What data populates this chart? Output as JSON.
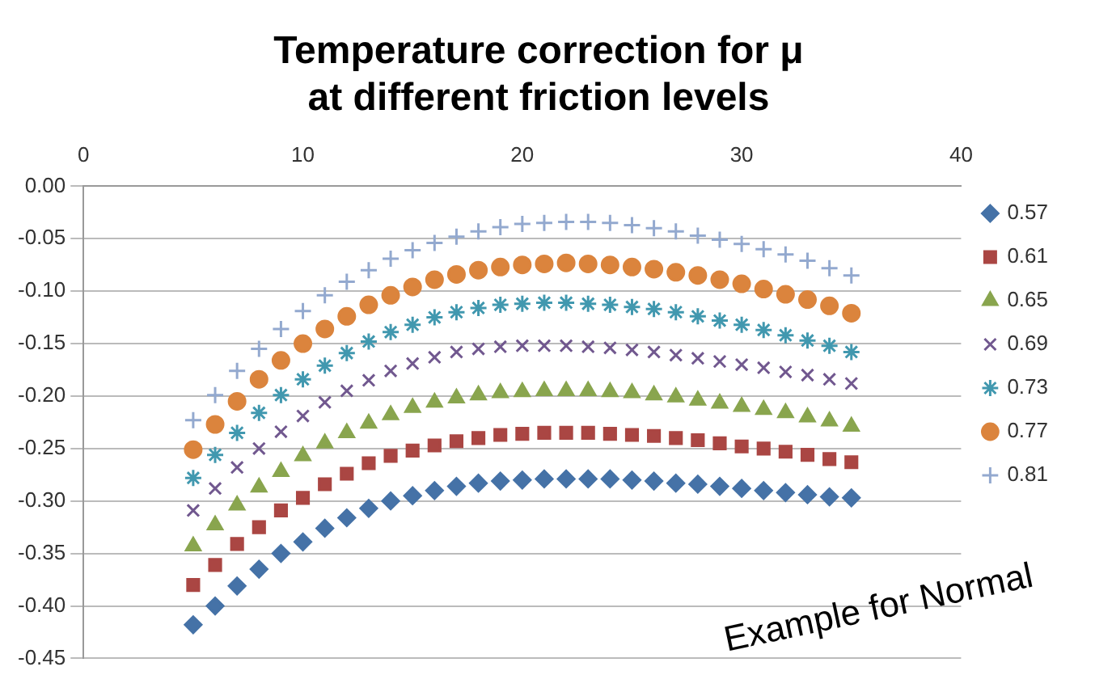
{
  "chart_data": {
    "type": "scatter",
    "title": "Temperature correction for μ\nat different friction levels",
    "x": [
      5,
      6,
      7,
      8,
      9,
      10,
      11,
      12,
      13,
      14,
      15,
      16,
      17,
      18,
      19,
      20,
      21,
      22,
      23,
      24,
      25,
      26,
      27,
      28,
      29,
      30,
      31,
      32,
      33,
      34,
      35
    ],
    "series": [
      {
        "name": "0.57",
        "color": "#4572a7",
        "marker": "diamond",
        "values": [
          -0.418,
          -0.4,
          -0.381,
          -0.365,
          -0.35,
          -0.339,
          -0.326,
          -0.316,
          -0.307,
          -0.3,
          -0.295,
          -0.29,
          -0.286,
          -0.283,
          -0.281,
          -0.28,
          -0.279,
          -0.279,
          -0.279,
          -0.279,
          -0.28,
          -0.281,
          -0.283,
          -0.284,
          -0.286,
          -0.288,
          -0.29,
          -0.292,
          -0.294,
          -0.296,
          -0.297
        ]
      },
      {
        "name": "0.61",
        "color": "#aa4643",
        "marker": "square",
        "values": [
          -0.38,
          -0.361,
          -0.341,
          -0.325,
          -0.309,
          -0.297,
          -0.284,
          -0.274,
          -0.264,
          -0.257,
          -0.252,
          -0.247,
          -0.243,
          -0.24,
          -0.237,
          -0.236,
          -0.235,
          -0.235,
          -0.235,
          -0.236,
          -0.237,
          -0.238,
          -0.24,
          -0.242,
          -0.245,
          -0.248,
          -0.25,
          -0.253,
          -0.256,
          -0.26,
          -0.263
        ]
      },
      {
        "name": "0.65",
        "color": "#89a54e",
        "marker": "triangle",
        "values": [
          -0.343,
          -0.323,
          -0.304,
          -0.287,
          -0.272,
          -0.257,
          -0.245,
          -0.235,
          -0.226,
          -0.218,
          -0.211,
          -0.206,
          -0.202,
          -0.199,
          -0.197,
          -0.196,
          -0.195,
          -0.195,
          -0.195,
          -0.196,
          -0.197,
          -0.199,
          -0.201,
          -0.204,
          -0.207,
          -0.21,
          -0.213,
          -0.216,
          -0.22,
          -0.224,
          -0.229
        ]
      },
      {
        "name": "0.69",
        "color": "#71588f",
        "marker": "cross",
        "values": [
          -0.309,
          -0.288,
          -0.268,
          -0.25,
          -0.234,
          -0.219,
          -0.206,
          -0.195,
          -0.185,
          -0.176,
          -0.169,
          -0.163,
          -0.158,
          -0.155,
          -0.153,
          -0.152,
          -0.152,
          -0.152,
          -0.153,
          -0.154,
          -0.156,
          -0.158,
          -0.161,
          -0.164,
          -0.167,
          -0.17,
          -0.173,
          -0.177,
          -0.18,
          -0.184,
          -0.188
        ]
      },
      {
        "name": "0.73",
        "color": "#4198af",
        "values": [
          -0.278,
          -0.256,
          -0.235,
          -0.216,
          -0.199,
          -0.184,
          -0.171,
          -0.159,
          -0.148,
          -0.139,
          -0.132,
          -0.125,
          -0.12,
          -0.116,
          -0.113,
          -0.112,
          -0.111,
          -0.111,
          -0.112,
          -0.113,
          -0.115,
          -0.117,
          -0.12,
          -0.124,
          -0.128,
          -0.132,
          -0.137,
          -0.142,
          -0.147,
          -0.152,
          -0.158
        ]
      },
      {
        "name": "0.77",
        "color": "#db843d",
        "marker": "circle",
        "values": [
          -0.251,
          -0.227,
          -0.205,
          -0.184,
          -0.166,
          -0.15,
          -0.136,
          -0.124,
          -0.113,
          -0.104,
          -0.096,
          -0.089,
          -0.084,
          -0.08,
          -0.077,
          -0.075,
          -0.074,
          -0.073,
          -0.074,
          -0.075,
          -0.077,
          -0.079,
          -0.082,
          -0.085,
          -0.089,
          -0.093,
          -0.098,
          -0.103,
          -0.108,
          -0.114,
          -0.121
        ]
      },
      {
        "name": "0.81",
        "color": "#93a9cf",
        "marker": "plus",
        "values": [
          -0.223,
          -0.199,
          -0.176,
          -0.155,
          -0.136,
          -0.119,
          -0.104,
          -0.091,
          -0.08,
          -0.069,
          -0.061,
          -0.054,
          -0.048,
          -0.043,
          -0.039,
          -0.036,
          -0.035,
          -0.034,
          -0.034,
          -0.035,
          -0.037,
          -0.04,
          -0.043,
          -0.047,
          -0.051,
          -0.055,
          -0.06,
          -0.065,
          -0.071,
          -0.078,
          -0.085
        ]
      }
    ],
    "xlim": [
      0,
      40
    ],
    "xticks": [
      0,
      10,
      20,
      30,
      40
    ],
    "ylim": [
      -0.45,
      0
    ],
    "yticks": [
      {
        "value": 0,
        "label": "0.00"
      },
      {
        "value": -0.05,
        "label": "-0.05"
      },
      {
        "value": -0.1,
        "label": "-0.10"
      },
      {
        "value": -0.15,
        "label": "-0.15"
      },
      {
        "value": -0.2,
        "label": "-0.20"
      },
      {
        "value": -0.25,
        "label": "-0.25"
      },
      {
        "value": -0.3,
        "label": "-0.30"
      },
      {
        "value": -0.35,
        "label": "-0.35"
      },
      {
        "value": -0.4,
        "label": "-0.40"
      },
      {
        "value": -0.45,
        "label": "-0.45"
      }
    ],
    "grid": "y",
    "legend": "right",
    "annotations": [
      "Example for Normal"
    ]
  }
}
